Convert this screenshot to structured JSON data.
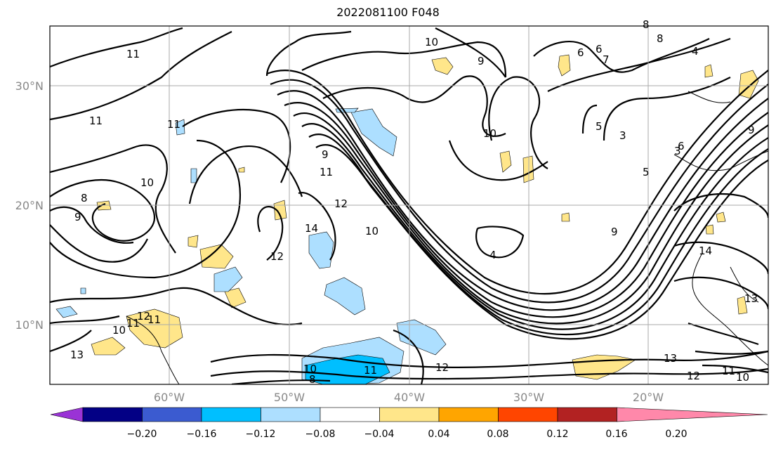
{
  "title": "2022081100 F048",
  "map": {
    "lat_labels": [
      "30°N",
      "20°N",
      "10°N"
    ],
    "lon_labels": [
      "60°W",
      "50°W",
      "40°W",
      "30°W",
      "20°W"
    ],
    "contour_labels": [
      "11",
      "11",
      "11",
      "10",
      "9",
      "8",
      "6",
      "5",
      "6",
      "7",
      "4",
      "3",
      "9",
      "10",
      "11",
      "12",
      "14",
      "12",
      "10",
      "4",
      "9",
      "8",
      "10",
      "11",
      "13",
      "12",
      "14",
      "13",
      "12",
      "11",
      "10",
      "10",
      "8",
      "8",
      "11",
      "12",
      "11",
      "10",
      "13",
      "9",
      "3",
      "5",
      "6",
      "9"
    ]
  },
  "colorbar": {
    "tick_labels": [
      "−0.20",
      "−0.16",
      "−0.12",
      "−0.08",
      "−0.04",
      "0.04",
      "0.08",
      "0.12",
      "0.16",
      "0.20"
    ],
    "colors": [
      "#9a33d6",
      "#030085",
      "#3b5bd0",
      "#00bfff",
      "#addfff",
      "#ffffff",
      "#ffe68a",
      "#ffa500",
      "#ff4500",
      "#b22222",
      "#ff88aa"
    ]
  }
}
